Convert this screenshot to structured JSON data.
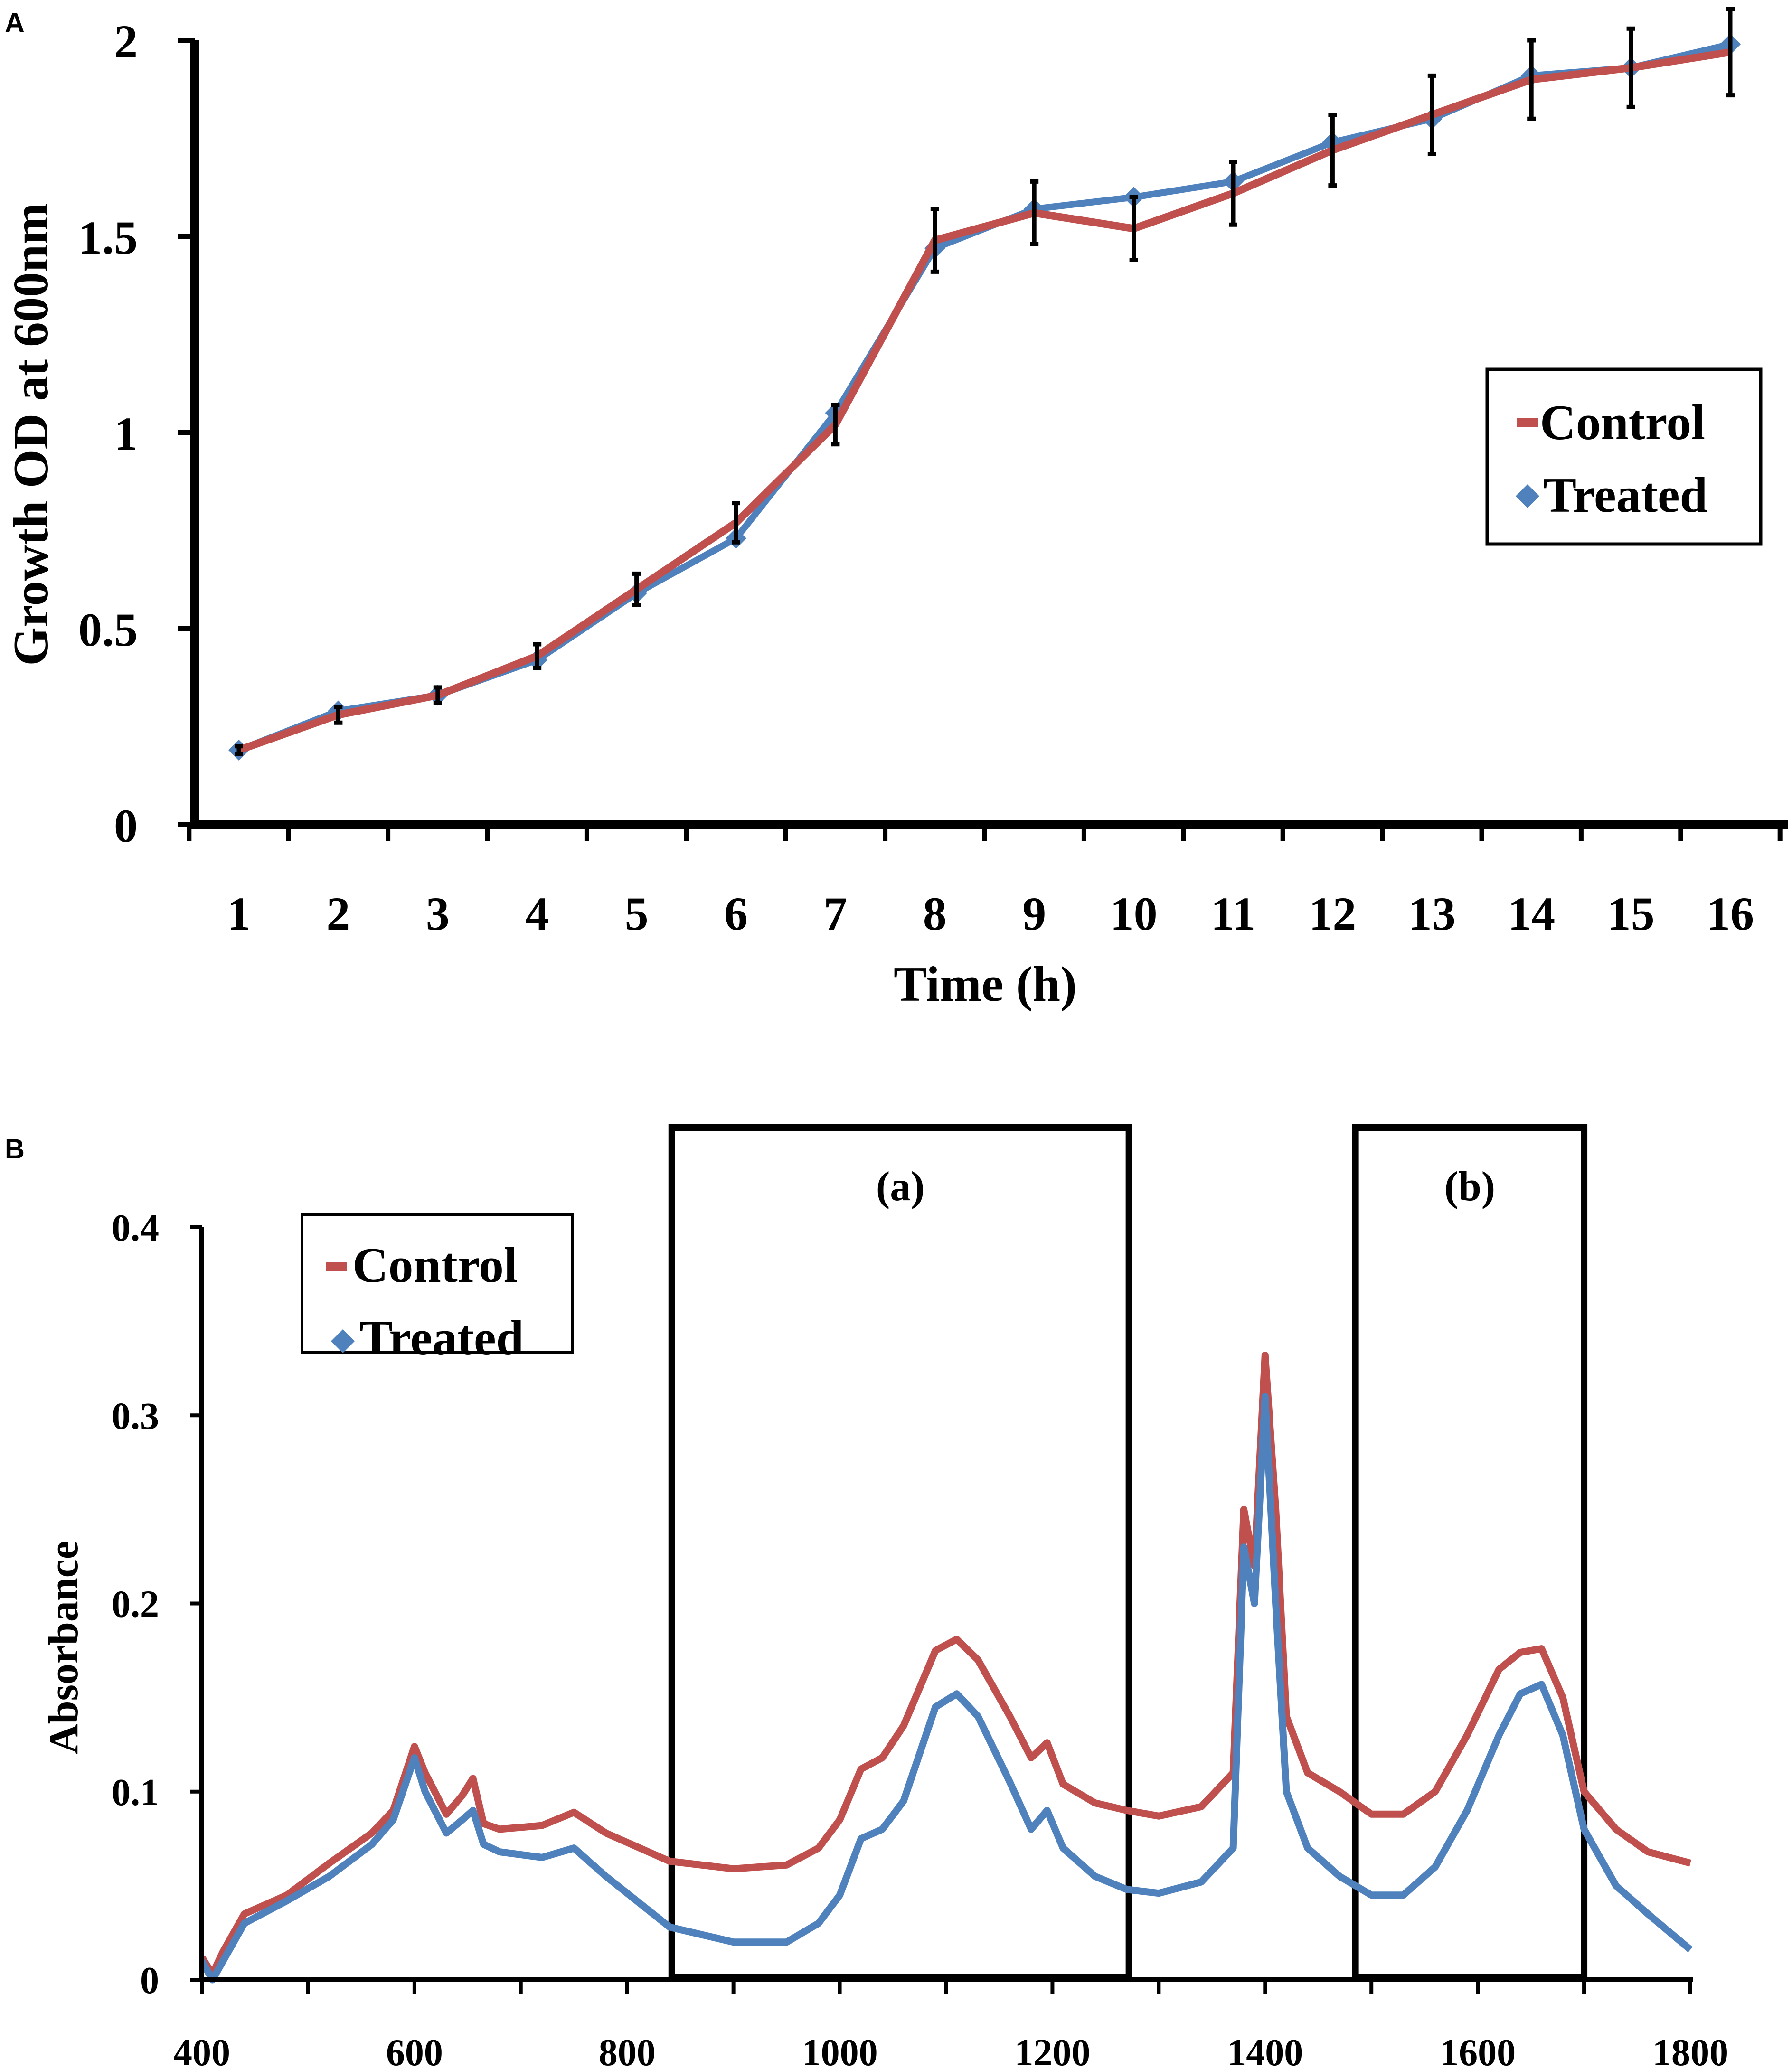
{
  "colors": {
    "control": "#c0504d",
    "treated": "#4f81bd",
    "axis": "#000000"
  },
  "chart_data": [
    {
      "panel_label": "A",
      "type": "line",
      "title": "",
      "xlabel": "Time (h)",
      "ylabel": "Growth OD at 600nm",
      "ylim": [
        0,
        2
      ],
      "y_ticks": [
        "0",
        "0.5",
        "1",
        "1.5",
        "2"
      ],
      "x_ticks": [
        "1",
        "2",
        "3",
        "4",
        "5",
        "6",
        "7",
        "8",
        "9",
        "10",
        "11",
        "12",
        "13",
        "14",
        "15",
        "16"
      ],
      "x": [
        1,
        2,
        3,
        4,
        5,
        6,
        7,
        8,
        9,
        10,
        11,
        12,
        13,
        14,
        15,
        16
      ],
      "series": [
        {
          "name": "Treated",
          "marker": "diamond",
          "values": [
            0.19,
            0.29,
            0.33,
            0.42,
            0.59,
            0.73,
            1.05,
            1.47,
            1.57,
            1.6,
            1.64,
            1.74,
            1.8,
            1.91,
            1.93,
            1.99
          ]
        },
        {
          "name": "Control",
          "marker": "dash",
          "values": [
            0.19,
            0.28,
            0.33,
            0.43,
            0.6,
            0.77,
            1.02,
            1.49,
            1.56,
            1.52,
            1.61,
            1.72,
            1.81,
            1.9,
            1.93,
            1.97
          ],
          "error": [
            0.01,
            0.02,
            0.02,
            0.03,
            0.04,
            0.05,
            0.05,
            0.08,
            0.08,
            0.08,
            0.08,
            0.09,
            0.1,
            0.1,
            0.1,
            0.11
          ]
        }
      ],
      "legend": {
        "placement": "right",
        "entries": [
          "Control",
          "Treated"
        ]
      }
    },
    {
      "panel_label": "B",
      "type": "line",
      "title": "",
      "xlabel": "",
      "ylabel": "Absorbance",
      "xlim": [
        400,
        1800
      ],
      "ylim": [
        0,
        0.4
      ],
      "x_ticks": [
        "400",
        "600",
        "800",
        "1000",
        "1200",
        "1400",
        "1600",
        "1800"
      ],
      "y_ticks": [
        "0",
        "0.1",
        "0.2",
        "0.3",
        "0.4"
      ],
      "series": [
        {
          "name": "Control",
          "x": [
            400,
            410,
            420,
            440,
            480,
            520,
            560,
            580,
            600,
            610,
            630,
            645,
            655,
            665,
            680,
            720,
            750,
            780,
            840,
            900,
            950,
            980,
            1000,
            1020,
            1040,
            1060,
            1090,
            1110,
            1130,
            1160,
            1180,
            1195,
            1210,
            1240,
            1270,
            1300,
            1340,
            1370,
            1380,
            1390,
            1400,
            1410,
            1420,
            1440,
            1470,
            1500,
            1530,
            1560,
            1590,
            1620,
            1640,
            1660,
            1680,
            1700,
            1730,
            1760,
            1800
          ],
          "values": [
            0.012,
            0.003,
            0.015,
            0.035,
            0.045,
            0.062,
            0.078,
            0.09,
            0.124,
            0.11,
            0.088,
            0.098,
            0.107,
            0.083,
            0.08,
            0.082,
            0.089,
            0.078,
            0.063,
            0.059,
            0.061,
            0.07,
            0.085,
            0.112,
            0.118,
            0.135,
            0.175,
            0.181,
            0.17,
            0.14,
            0.118,
            0.126,
            0.104,
            0.094,
            0.09,
            0.087,
            0.092,
            0.11,
            0.25,
            0.22,
            0.332,
            0.25,
            0.14,
            0.11,
            0.1,
            0.088,
            0.088,
            0.1,
            0.13,
            0.165,
            0.174,
            0.176,
            0.15,
            0.1,
            0.08,
            0.068,
            0.062
          ]
        },
        {
          "name": "Treated",
          "x": [
            400,
            410,
            420,
            440,
            480,
            520,
            560,
            580,
            600,
            610,
            630,
            645,
            655,
            665,
            680,
            720,
            750,
            780,
            840,
            900,
            950,
            980,
            1000,
            1020,
            1040,
            1060,
            1090,
            1110,
            1130,
            1160,
            1180,
            1195,
            1210,
            1240,
            1270,
            1300,
            1340,
            1370,
            1380,
            1390,
            1400,
            1410,
            1420,
            1440,
            1470,
            1500,
            1530,
            1560,
            1590,
            1620,
            1640,
            1660,
            1680,
            1700,
            1730,
            1760,
            1800
          ],
          "values": [
            0.01,
            0.0,
            0.01,
            0.03,
            0.042,
            0.055,
            0.072,
            0.085,
            0.118,
            0.1,
            0.078,
            0.085,
            0.09,
            0.072,
            0.068,
            0.065,
            0.07,
            0.055,
            0.028,
            0.02,
            0.02,
            0.03,
            0.045,
            0.075,
            0.08,
            0.095,
            0.145,
            0.152,
            0.14,
            0.105,
            0.08,
            0.09,
            0.07,
            0.055,
            0.048,
            0.046,
            0.052,
            0.07,
            0.23,
            0.2,
            0.31,
            0.2,
            0.1,
            0.07,
            0.055,
            0.045,
            0.045,
            0.06,
            0.09,
            0.13,
            0.152,
            0.157,
            0.13,
            0.08,
            0.05,
            0.035,
            0.016
          ]
        }
      ],
      "regions": [
        {
          "label": "(a)",
          "x_from": 842,
          "x_to": 1272
        },
        {
          "label": "(b)",
          "x_from": 1485,
          "x_to": 1700
        }
      ],
      "legend": {
        "placement": "top-left",
        "entries": [
          "Control",
          "Treated"
        ]
      }
    }
  ]
}
